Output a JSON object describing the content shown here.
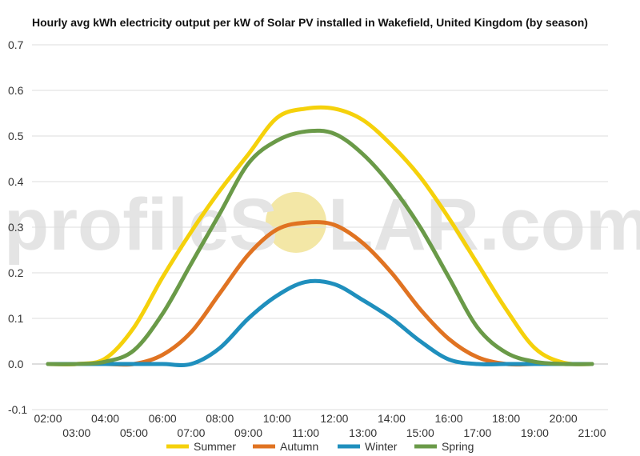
{
  "chart_data": {
    "type": "line",
    "title": "Hourly avg kWh electricity output per kW of Solar PV installed in Wakefield, United Kingdom (by season)",
    "xlabel": "",
    "ylabel": "",
    "ylim": [
      -0.1,
      0.7
    ],
    "yticks": [
      "-0.1",
      "0.0",
      "0.1",
      "0.2",
      "0.3",
      "0.4",
      "0.5",
      "0.6",
      "0.7"
    ],
    "ytick_values": [
      -0.1,
      0.0,
      0.1,
      0.2,
      0.3,
      0.4,
      0.5,
      0.6,
      0.7
    ],
    "x": [
      "02:00",
      "03:00",
      "04:00",
      "05:00",
      "06:00",
      "07:00",
      "08:00",
      "09:00",
      "10:00",
      "11:00",
      "12:00",
      "13:00",
      "14:00",
      "15:00",
      "16:00",
      "17:00",
      "18:00",
      "19:00",
      "20:00",
      "21:00"
    ],
    "grid": true,
    "legend_position": "bottom",
    "series": [
      {
        "name": "Summer",
        "color": "#f5d10b",
        "values": [
          0.0,
          0.0,
          0.012,
          0.08,
          0.19,
          0.29,
          0.38,
          0.46,
          0.54,
          0.56,
          0.56,
          0.535,
          0.48,
          0.41,
          0.32,
          0.22,
          0.12,
          0.035,
          0.003,
          0.0
        ]
      },
      {
        "name": "Autumn",
        "color": "#e07322",
        "values": [
          0.0,
          0.0,
          0.0,
          0.0,
          0.02,
          0.07,
          0.155,
          0.24,
          0.295,
          0.31,
          0.305,
          0.265,
          0.2,
          0.12,
          0.055,
          0.015,
          0.0,
          0.0,
          0.0,
          0.0
        ]
      },
      {
        "name": "Winter",
        "color": "#1f8fbd",
        "values": [
          0.0,
          0.0,
          0.0,
          0.0,
          0.0,
          0.0,
          0.035,
          0.1,
          0.15,
          0.18,
          0.175,
          0.14,
          0.1,
          0.05,
          0.01,
          0.0,
          0.0,
          0.0,
          0.0,
          0.0
        ]
      },
      {
        "name": "Spring",
        "color": "#6a9a48",
        "values": [
          0.0,
          0.0,
          0.005,
          0.03,
          0.11,
          0.22,
          0.33,
          0.44,
          0.49,
          0.51,
          0.505,
          0.46,
          0.39,
          0.3,
          0.19,
          0.08,
          0.025,
          0.005,
          0.0,
          0.0
        ]
      }
    ]
  },
  "watermark": {
    "left": "profileS",
    "right": "LAR.com",
    "sun_color": "#f3e7a6"
  }
}
